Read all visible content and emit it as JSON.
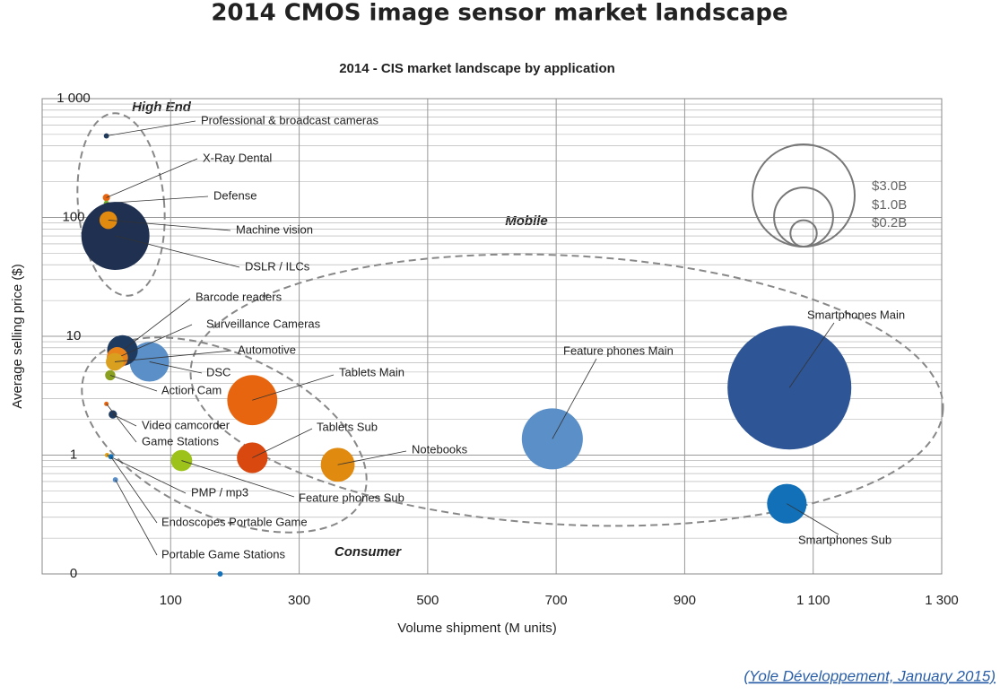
{
  "chart_data": {
    "type": "bubble",
    "title": "2014 CMOS image sensor market landscape",
    "subtitle": "2014 - CIS market landscape by application",
    "x_label": "Volume shipment (M units)",
    "y_label": "Average selling price ($)",
    "xlim": [
      -100,
      1300
    ],
    "xticks": [
      100,
      300,
      500,
      700,
      900,
      {
        "value": 1100,
        "label": "1 100"
      },
      {
        "value": 1300,
        "label": "1 300"
      }
    ],
    "ylim": [
      0.1,
      1000
    ],
    "y_log": true,
    "yticks": [
      {
        "value": 0.1,
        "label": "0"
      },
      1,
      10,
      100,
      {
        "value": 1000,
        "label": "1 000"
      }
    ],
    "grid": true,
    "annotations": [
      "High End",
      "Mobile",
      "Consumer"
    ],
    "size_legend": [
      {
        "value": 3.0,
        "label": "$3.0B"
      },
      {
        "value": 1.0,
        "label": "$1.0B"
      },
      {
        "value": 0.2,
        "label": "$0.2B"
      }
    ],
    "source": "(Yole Développement, January 2015)",
    "points": [
      {
        "label": "Smartphones Main",
        "x": 1063,
        "y": 3.7,
        "size": 4.4,
        "color": "#2e5596"
      },
      {
        "label": "Smartphones Sub",
        "x": 1059,
        "y": 0.39,
        "size": 0.45,
        "color": "#1170b8"
      },
      {
        "label": "Feature phones Main",
        "x": 694,
        "y": 1.37,
        "size": 1.07,
        "color": "#5b8fc7"
      },
      {
        "label": "Tablets Main",
        "x": 227,
        "y": 2.9,
        "size": 0.72,
        "color": "#e8650f"
      },
      {
        "label": "Tablets Sub",
        "x": 227,
        "y": 0.95,
        "size": 0.27,
        "color": "#d9480f"
      },
      {
        "label": "Notebooks",
        "x": 360,
        "y": 0.83,
        "size": 0.33,
        "color": "#e08a10"
      },
      {
        "label": "Feature phones Sub",
        "x": 117,
        "y": 0.9,
        "size": 0.13,
        "color": "#9dc21a"
      },
      {
        "label": "DSC",
        "x": 67,
        "y": 6.1,
        "size": 0.45,
        "color": "#5b8fc7"
      },
      {
        "label": "Barcode readers",
        "x": 25,
        "y": 7.6,
        "size": 0.27,
        "color": "#1f3a5f"
      },
      {
        "label": "Surveillance Cameras",
        "x": 17,
        "y": 6.6,
        "size": 0.13,
        "color": "#e8821a"
      },
      {
        "label": "Automotive",
        "x": 13,
        "y": 6.1,
        "size": 0.09,
        "color": "#d9a020"
      },
      {
        "label": "Action Cam",
        "x": 6,
        "y": 4.7,
        "size": 0.03,
        "color": "#8aa020"
      },
      {
        "label": "Video camcorder",
        "x": 10,
        "y": 2.2,
        "size": 0.02,
        "color": "#1f3a5f"
      },
      {
        "label": "Game Stations",
        "x": 0,
        "y": 2.7,
        "size": 0.004,
        "color": "#e8650f"
      },
      {
        "label": "PMP / mp3",
        "x": 1,
        "y": 1.0,
        "size": 0.003,
        "color": "#e8a010"
      },
      {
        "label": "Endoscopes Portable Game",
        "x": 7,
        "y": 0.97,
        "size": 0.008,
        "color": "#1170b8"
      },
      {
        "label": "Portable Game Stations",
        "x": 14,
        "y": 0.62,
        "size": 0.008,
        "color": "#5b8fc7"
      },
      {
        "label": null,
        "x": 177,
        "y": 0.1,
        "size": 0.008,
        "color": "#1170b8"
      },
      {
        "label": "Professional & broadcast cameras",
        "x": 0,
        "y": 486,
        "size": 0.008,
        "color": "#1f3a5f"
      },
      {
        "label": "X-Ray Dental",
        "x": 0,
        "y": 147,
        "size": 0.015,
        "color": "#e8650f"
      },
      {
        "label": "Defense",
        "x": 0,
        "y": 132,
        "size": 0.008,
        "color": "#7ab030"
      },
      {
        "label": "DSLR / ILCs",
        "x": 14,
        "y": 70,
        "size": 1.33,
        "color": "#1f3050"
      },
      {
        "label": "Machine vision",
        "x": 3,
        "y": 95,
        "size": 0.09,
        "color": "#e08a10"
      }
    ]
  }
}
